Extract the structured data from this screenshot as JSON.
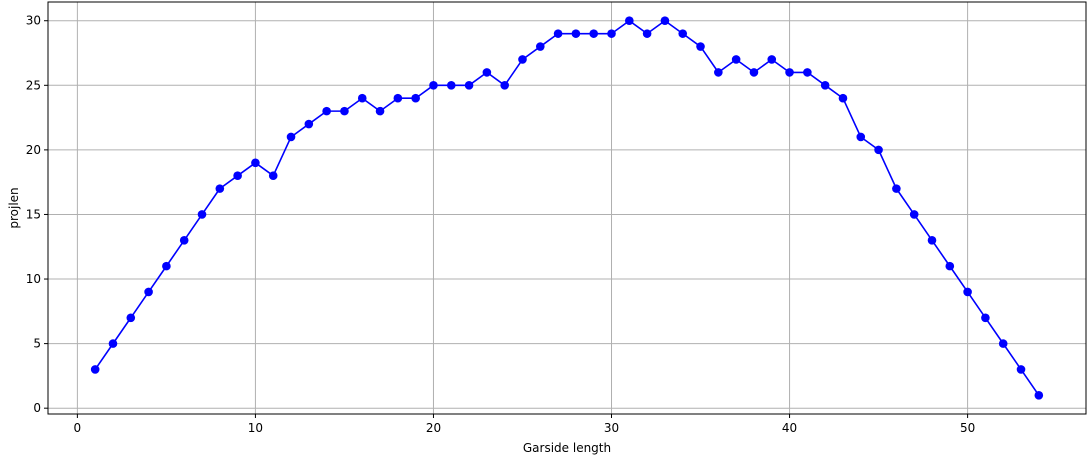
{
  "chart_data": {
    "type": "line",
    "title": "",
    "xlabel": "Garside length",
    "ylabel": "projlen",
    "xlim": [
      -1.65,
      56.65
    ],
    "ylim": [
      -0.45,
      31.45
    ],
    "xticks": [
      0,
      10,
      20,
      30,
      40,
      50
    ],
    "yticks": [
      0,
      5,
      10,
      15,
      20,
      25,
      30
    ],
    "grid": true,
    "line_color": "#0000ff",
    "marker": "circle",
    "series": [
      {
        "x": [
          1,
          2,
          3,
          4,
          5,
          6,
          7,
          8,
          9,
          10,
          11,
          12,
          13,
          14,
          15,
          16,
          17,
          18,
          19,
          20,
          21,
          22,
          23,
          24,
          25,
          26,
          27,
          28,
          29,
          30,
          31,
          32,
          33,
          34,
          35,
          36,
          37,
          38,
          39,
          40,
          41,
          42,
          43,
          44,
          45,
          46,
          47,
          48,
          49,
          50,
          51,
          52,
          53,
          54
        ],
        "y": [
          3,
          5,
          7,
          9,
          11,
          13,
          15,
          17,
          18,
          19,
          18,
          21,
          22,
          23,
          23,
          24,
          23,
          24,
          24,
          25,
          25,
          25,
          26,
          25,
          27,
          28,
          29,
          29,
          29,
          29,
          30,
          29,
          30,
          29,
          28,
          26,
          27,
          26,
          27,
          26,
          26,
          25,
          24,
          21,
          20,
          17,
          15,
          13,
          11,
          9,
          7,
          5,
          3,
          1
        ]
      }
    ]
  }
}
